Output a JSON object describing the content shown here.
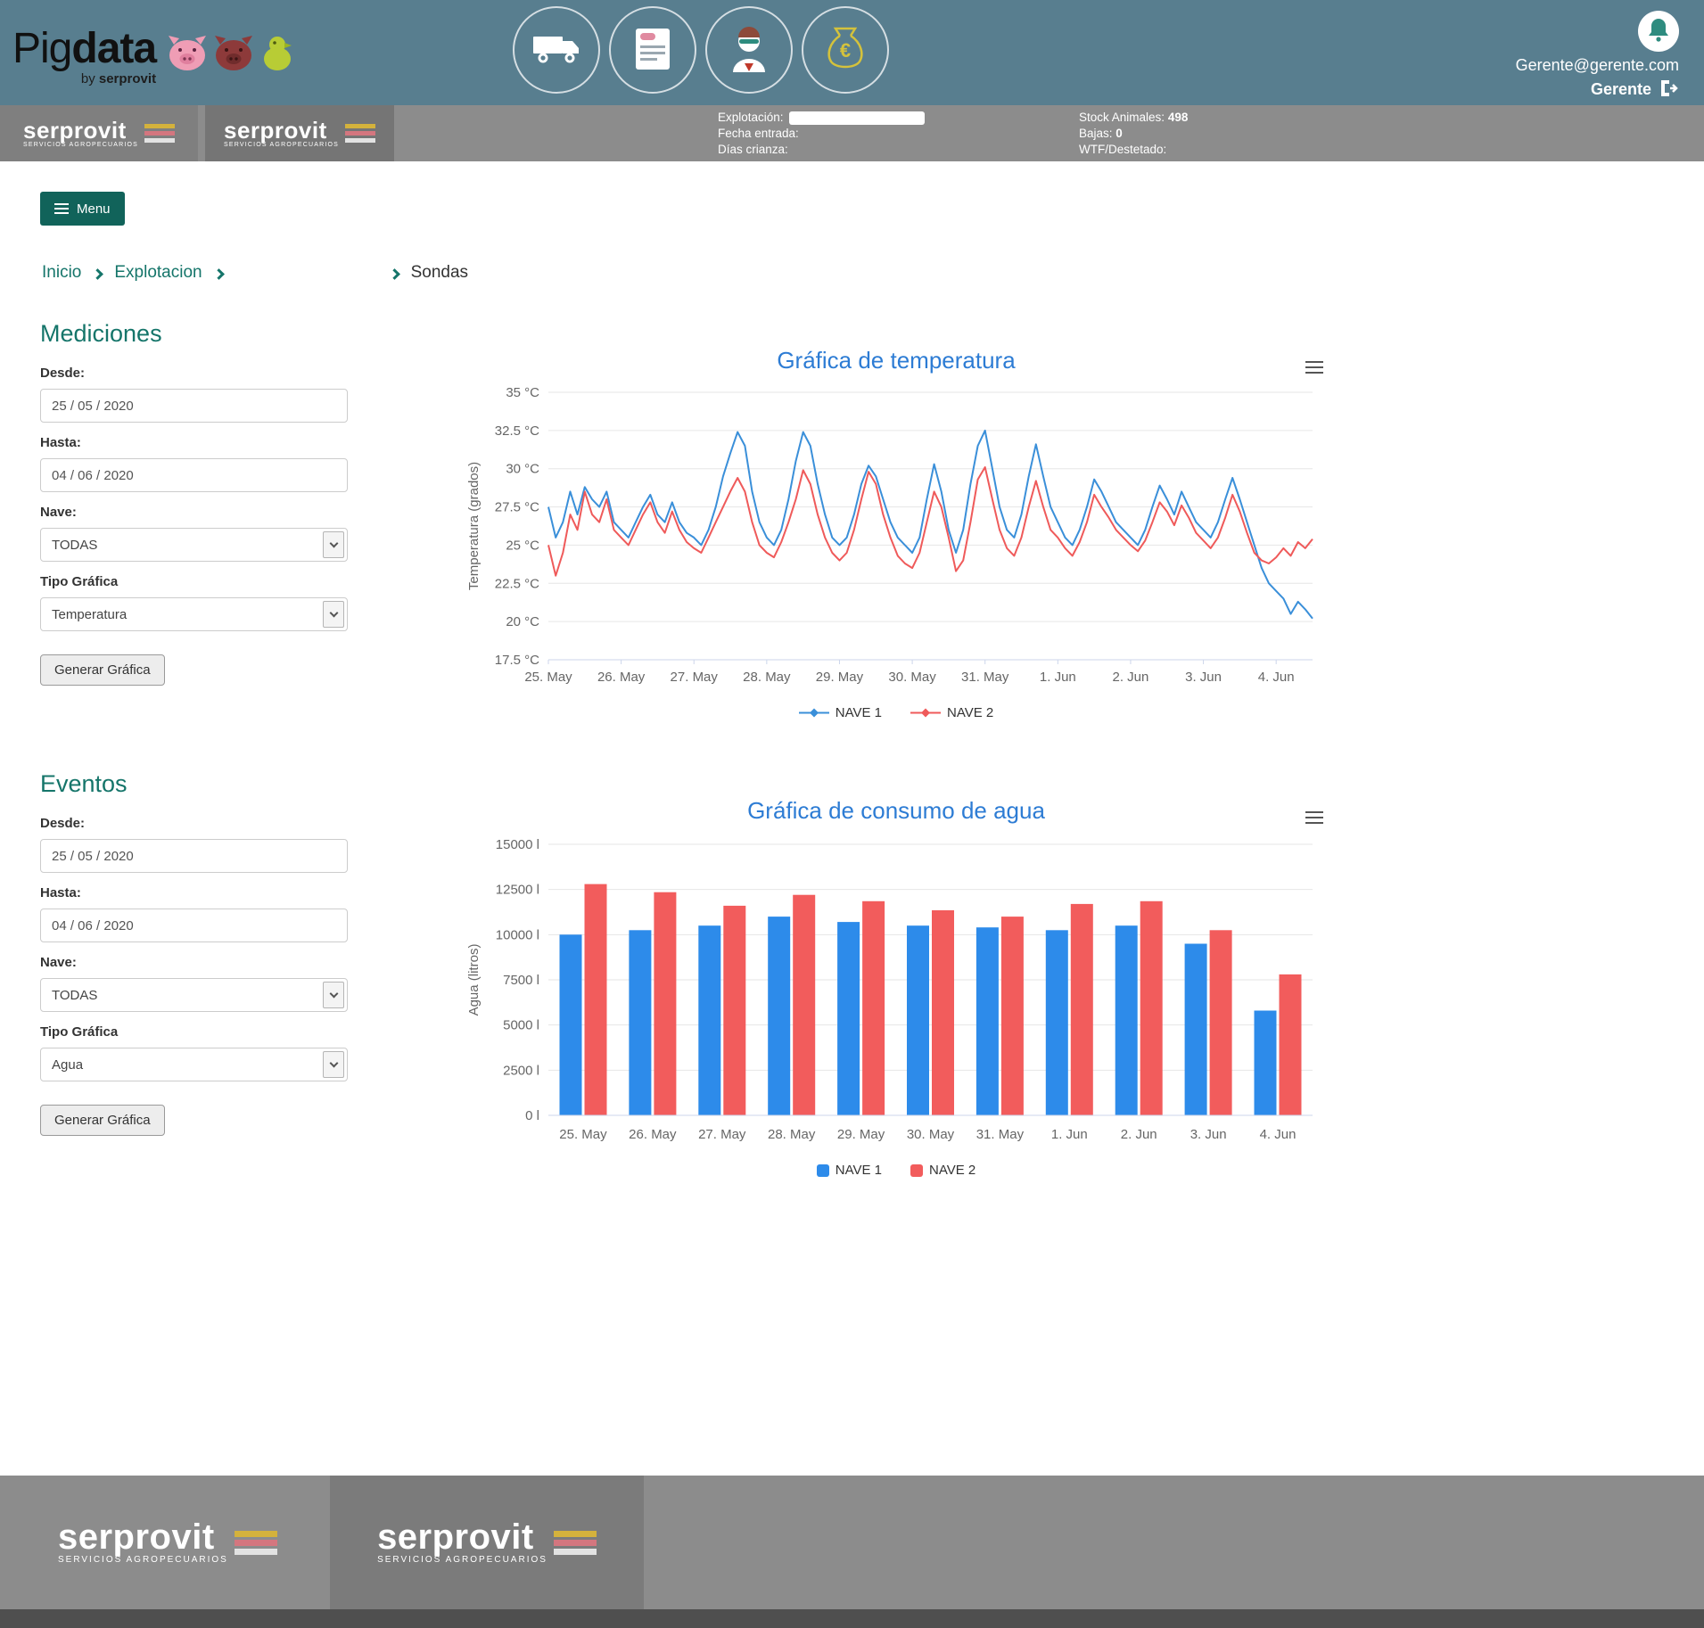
{
  "colors": {
    "header_bg": "#587e8f",
    "gray_bar": "#8c8c8c",
    "teal_accent": "#15756a",
    "menu_button": "#11635a",
    "chart_title_blue": "#2d7cd4",
    "series_blue": "#3a8fd9",
    "series_red": "#ef5a5a"
  },
  "header": {
    "brand": {
      "pig": "Pig",
      "data": "data",
      "by": "by ",
      "by_brand": "serprovit"
    },
    "nav_icons": [
      "truck-icon",
      "document-icon",
      "veterinarian-icon",
      "money-bag-icon"
    ],
    "user": {
      "email": "Gerente@gerente.com",
      "role": "Gerente"
    }
  },
  "infobar": {
    "explotacion_label": "Explotación:",
    "fecha_label": "Fecha entrada:",
    "dias_label": "Días crianza:",
    "stock_label": "Stock Animales:",
    "stock_value": "498",
    "bajas_label": "Bajas:",
    "bajas_value": "0",
    "wtf_label": "WTF/Destetado:",
    "wtf_value": ""
  },
  "menu": {
    "label": "Menu"
  },
  "breadcrumb": {
    "inicio": "Inicio",
    "explotacion": "Explotacion",
    "sondas": "Sondas"
  },
  "serprovit_logo": {
    "name": "serprovit",
    "sub": "SERVICIOS AGROPECUARIOS"
  },
  "mediciones": {
    "title": "Mediciones",
    "desde_label": "Desde:",
    "desde_value": "25 / 05 / 2020",
    "hasta_label": "Hasta:",
    "hasta_value": "04 / 06 / 2020",
    "nave_label": "Nave:",
    "nave_value": "TODAS",
    "tipo_label": "Tipo Gráfica",
    "tipo_value": "Temperatura",
    "generar_label": "Generar Gráfica"
  },
  "eventos": {
    "title": "Eventos",
    "desde_label": "Desde:",
    "desde_value": "25 / 05 / 2020",
    "hasta_label": "Hasta:",
    "hasta_value": "04 / 06 / 2020",
    "nave_label": "Nave:",
    "nave_value": "TODAS",
    "tipo_label": "Tipo Gráfica",
    "tipo_value": "Agua",
    "generar_label": "Generar Gráfica"
  },
  "chart_data": [
    {
      "type": "line",
      "title": "Gráfica de temperatura",
      "ylabel": "Temperatura (grados)",
      "ylim": [
        17.5,
        35
      ],
      "ytick_values": [
        17.5,
        20,
        22.5,
        25,
        27.5,
        30,
        32.5,
        35
      ],
      "ytick_labels": [
        "17.5 °C",
        "20 °C",
        "22.5 °C",
        "25 °C",
        "27.5 °C",
        "30 °C",
        "32.5 °C",
        "35 °C"
      ],
      "categories": [
        "25. May",
        "26. May",
        "27. May",
        "28. May",
        "29. May",
        "30. May",
        "31. May",
        "1. Jun",
        "2. Jun",
        "3. Jun",
        "4. Jun"
      ],
      "x_step": 0.1,
      "x_max": 10.5,
      "grid": true,
      "legend_position": "bottom",
      "series": [
        {
          "name": "NAVE 1",
          "color": "#3a8fd9",
          "values": [
            27.5,
            25.5,
            26.5,
            28.5,
            27,
            28.8,
            28,
            27.5,
            28.5,
            26.5,
            26,
            25.5,
            26.5,
            27.5,
            28.3,
            27,
            26.5,
            27.8,
            26.5,
            25.8,
            25.5,
            25,
            26,
            27.5,
            29.5,
            31,
            32.4,
            31.5,
            28.5,
            26.5,
            25.5,
            25,
            26,
            28,
            30.5,
            32.4,
            31.5,
            29,
            27,
            25.5,
            25,
            25.5,
            27,
            29,
            30.2,
            29.5,
            28,
            26.5,
            25.5,
            25,
            24.5,
            25.5,
            28,
            30.3,
            28.5,
            26,
            24.5,
            26,
            29,
            31.5,
            32.5,
            30,
            27.5,
            26,
            25.5,
            27,
            29.5,
            31.6,
            29.5,
            27.5,
            26.5,
            25.5,
            25,
            26,
            27.5,
            29.3,
            28.5,
            27.5,
            26.5,
            26,
            25.5,
            25,
            26,
            27.5,
            28.9,
            28,
            27,
            28.5,
            27.5,
            26.5,
            26,
            25.5,
            26.5,
            28,
            29.4,
            28,
            26.5,
            25,
            23.5,
            22.5,
            22,
            21.5,
            20.5,
            21.3,
            20.8,
            20.2
          ]
        },
        {
          "name": "NAVE 2",
          "color": "#ef5a5a",
          "values": [
            25,
            23,
            24.5,
            27,
            26,
            28.5,
            27,
            26.5,
            28,
            26,
            25.5,
            25,
            26,
            27,
            27.8,
            26.5,
            25.8,
            27.2,
            26,
            25.2,
            24.8,
            24.5,
            25.5,
            26.5,
            27.5,
            28.5,
            29.4,
            28.5,
            26.5,
            25,
            24.5,
            24.2,
            25.2,
            26.5,
            28,
            29.9,
            29,
            27,
            25.5,
            24.5,
            24,
            24.5,
            26,
            28,
            29.8,
            29,
            27,
            25.5,
            24.3,
            23.8,
            23.5,
            24.5,
            26.5,
            28.5,
            27.5,
            25.5,
            23.3,
            24,
            26.5,
            29.3,
            30.1,
            28,
            26,
            24.8,
            24.3,
            25.5,
            27.5,
            29.2,
            27.5,
            26,
            25.5,
            24.8,
            24.3,
            25.2,
            26.5,
            28.3,
            27.5,
            26.8,
            26,
            25.5,
            25,
            24.6,
            25.3,
            26.5,
            27.8,
            27.2,
            26.3,
            27.6,
            26.8,
            25.8,
            25.3,
            24.8,
            25.5,
            26.8,
            28.3,
            27.2,
            25.8,
            24.5,
            24,
            23.8,
            24.2,
            24.8,
            24.3,
            25.2,
            24.8,
            25.4
          ]
        }
      ]
    },
    {
      "type": "bar",
      "title": "Gráfica de consumo de agua",
      "ylabel": "Agua (litros)",
      "ylim": [
        0,
        15000
      ],
      "ytick_values": [
        0,
        2500,
        5000,
        7500,
        10000,
        12500,
        15000
      ],
      "ytick_labels": [
        "0 l",
        "2500 l",
        "5000 l",
        "7500 l",
        "10000 l",
        "12500 l",
        "15000 l"
      ],
      "categories": [
        "25. May",
        "26. May",
        "27. May",
        "28. May",
        "29. May",
        "30. May",
        "31. May",
        "1. Jun",
        "2. Jun",
        "3. Jun",
        "4. Jun"
      ],
      "grid": true,
      "legend_position": "bottom",
      "series": [
        {
          "name": "NAVE 1",
          "color": "#2d8bea",
          "values": [
            10000,
            10250,
            10500,
            11000,
            10700,
            10500,
            10400,
            10250,
            10500,
            9500,
            5800
          ]
        },
        {
          "name": "NAVE 2",
          "color": "#f25c5c",
          "values": [
            12800,
            12350,
            11600,
            12200,
            11850,
            11350,
            11000,
            11700,
            11850,
            10250,
            7800
          ]
        }
      ]
    }
  ]
}
